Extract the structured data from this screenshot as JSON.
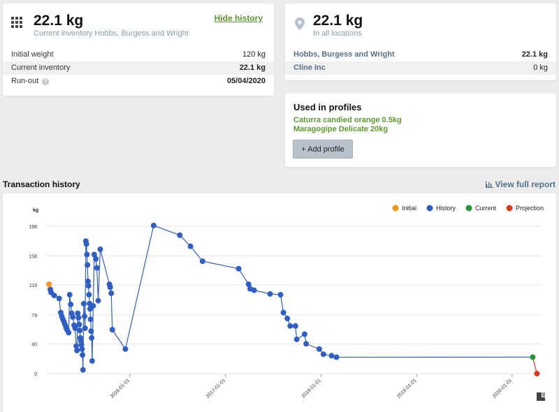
{
  "inventory": {
    "weight": "22.1 kg",
    "subtitle": "Current inventory Hobbs, Burgess and Wright",
    "hide_history": "Hide history",
    "rows": [
      {
        "label": "Initial weight",
        "value": "120 kg"
      },
      {
        "label": "Current inventory",
        "value": "22.1 kg"
      },
      {
        "label": "Run-out",
        "value": "05/04/2020"
      }
    ],
    "help_glyph": "?"
  },
  "locations": {
    "weight": "22.1 kg",
    "subtitle": "In all locations",
    "rows": [
      {
        "label": "Hobbs, Burgess and Wright",
        "value": "22.1 kg"
      },
      {
        "label": "Cline Inc",
        "value": "0 kg"
      }
    ]
  },
  "profiles": {
    "title": "Used in profiles",
    "items": [
      "Caturra candied orange 0.5kg",
      "Maragogipe Delicate 20kg"
    ],
    "add_label": "+ Add profile"
  },
  "history": {
    "title": "Transaction history",
    "view_report": "View full report"
  },
  "chart_data": {
    "type": "line",
    "ylabel": "kg",
    "ylim": [
      0,
      198
    ],
    "yticks": [
      0,
      40,
      79,
      119,
      158,
      198
    ],
    "xticks": [
      "2016-01-01",
      "2017-01-01",
      "2018-01-01",
      "2019-01-01",
      "2020-01-01"
    ],
    "xlim": [
      "2015-02-15",
      "2020-04-20"
    ],
    "legend_position": "top-right",
    "legend": [
      {
        "name": "Initial",
        "color": "#f7941d"
      },
      {
        "name": "History",
        "color": "#2f5fc4"
      },
      {
        "name": "Current",
        "color": "#1f9a32"
      },
      {
        "name": "Projection",
        "color": "#e03a1e"
      }
    ],
    "series": [
      {
        "name": "Initial",
        "points": [
          [
            "2015-02-26",
            120
          ]
        ]
      },
      {
        "name": "History",
        "points": [
          [
            "2015-03-03",
            113
          ],
          [
            "2015-03-06",
            109
          ],
          [
            "2015-03-18",
            105
          ],
          [
            "2015-04-06",
            101
          ],
          [
            "2015-04-12",
            82
          ],
          [
            "2015-04-16",
            77
          ],
          [
            "2015-04-20",
            73
          ],
          [
            "2015-04-24",
            70
          ],
          [
            "2015-04-28",
            66
          ],
          [
            "2015-05-02",
            62
          ],
          [
            "2015-05-06",
            59
          ],
          [
            "2015-05-12",
            55
          ],
          [
            "2015-05-16",
            106
          ],
          [
            "2015-05-20",
            93
          ],
          [
            "2015-05-24",
            81
          ],
          [
            "2015-05-28",
            76
          ],
          [
            "2015-06-02",
            65
          ],
          [
            "2015-06-06",
            61
          ],
          [
            "2015-06-10",
            37
          ],
          [
            "2015-06-13",
            31
          ],
          [
            "2015-06-16",
            81
          ],
          [
            "2015-06-19",
            75
          ],
          [
            "2015-06-22",
            66
          ],
          [
            "2015-06-24",
            58
          ],
          [
            "2015-06-26",
            48
          ],
          [
            "2015-06-28",
            44
          ],
          [
            "2015-06-30",
            39
          ],
          [
            "2015-07-02",
            33
          ],
          [
            "2015-07-04",
            25
          ],
          [
            "2015-07-06",
            5
          ],
          [
            "2015-07-09",
            94
          ],
          [
            "2015-07-12",
            77
          ],
          [
            "2015-07-14",
            61
          ],
          [
            "2015-07-17",
            178
          ],
          [
            "2015-07-19",
            174
          ],
          [
            "2015-07-21",
            160
          ],
          [
            "2015-07-23",
            146
          ],
          [
            "2015-07-25",
            124
          ],
          [
            "2015-07-27",
            118
          ],
          [
            "2015-07-29",
            106
          ],
          [
            "2015-07-31",
            94
          ],
          [
            "2015-08-02",
            87
          ],
          [
            "2015-08-04",
            73
          ],
          [
            "2015-08-06",
            57
          ],
          [
            "2015-08-08",
            48
          ],
          [
            "2015-08-10",
            17
          ],
          [
            "2015-08-14",
            91
          ],
          [
            "2015-08-18",
            160
          ],
          [
            "2015-08-24",
            154
          ],
          [
            "2015-08-28",
            142
          ],
          [
            "2015-09-02",
            98
          ],
          [
            "2015-09-10",
            167
          ],
          [
            "2015-10-15",
            120
          ],
          [
            "2015-10-18",
            116
          ],
          [
            "2015-10-22",
            108
          ],
          [
            "2015-10-26",
            59
          ],
          [
            "2015-12-15",
            33
          ],
          [
            "2016-04-01",
            199
          ],
          [
            "2016-07-10",
            186
          ],
          [
            "2016-08-20",
            171
          ],
          [
            "2016-10-05",
            151
          ],
          [
            "2017-02-20",
            141
          ],
          [
            "2017-03-30",
            120
          ],
          [
            "2017-04-05",
            114
          ],
          [
            "2017-04-20",
            112
          ],
          [
            "2017-06-20",
            107
          ],
          [
            "2017-07-30",
            106
          ],
          [
            "2017-08-10",
            82
          ],
          [
            "2017-08-25",
            74
          ],
          [
            "2017-09-05",
            64
          ],
          [
            "2017-09-25",
            64
          ],
          [
            "2017-09-30",
            46
          ],
          [
            "2017-10-30",
            53
          ],
          [
            "2017-11-05",
            40
          ],
          [
            "2017-12-25",
            33
          ],
          [
            "2018-01-10",
            26
          ],
          [
            "2018-02-10",
            24
          ],
          [
            "2018-03-01",
            22
          ]
        ]
      },
      {
        "name": "Current",
        "points": [
          [
            "2020-03-20",
            22.1
          ]
        ]
      },
      {
        "name": "Projection",
        "points": [
          [
            "2020-03-20",
            22.1
          ],
          [
            "2020-04-05",
            0
          ]
        ]
      }
    ]
  }
}
